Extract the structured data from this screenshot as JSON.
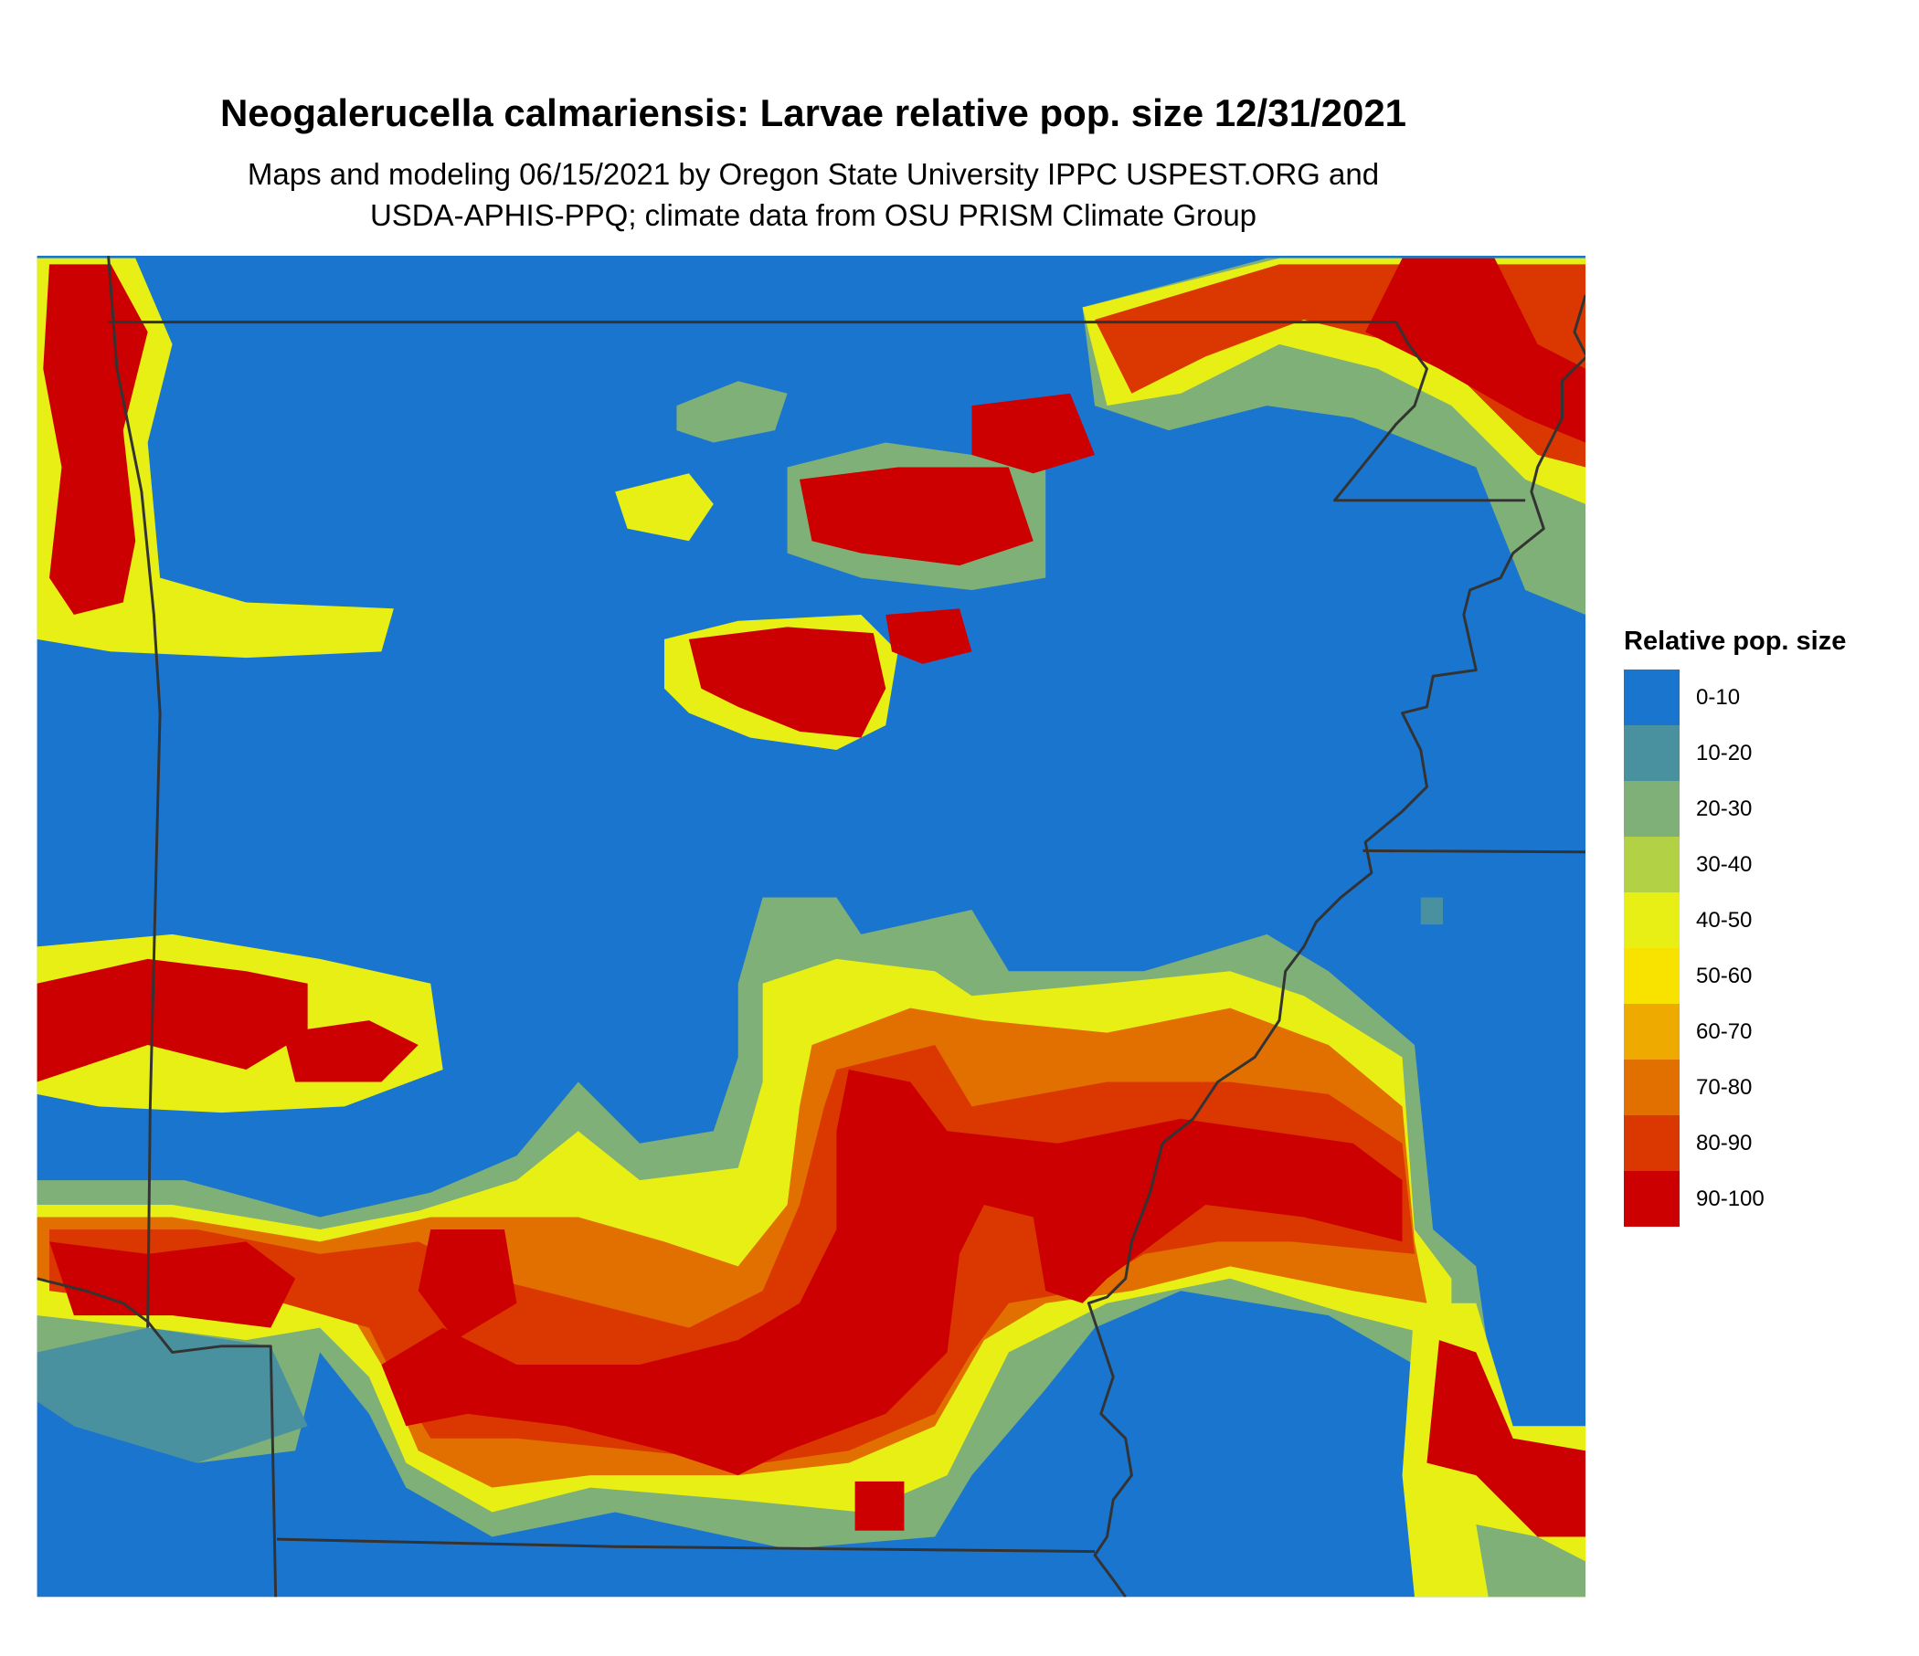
{
  "title": "Neogalerucella calmariensis: Larvae relative pop. size 12/31/2021",
  "subtitle_line1": "Maps and modeling 06/15/2021 by Oregon State University IPPC USPEST.ORG and",
  "subtitle_line2": "USDA-APHIS-PPQ; climate data from OSU PRISM Climate Group",
  "legend": {
    "title": "Relative pop. size",
    "items": [
      {
        "label": "0-10",
        "color": "#1a75cf"
      },
      {
        "label": "10-20",
        "color": "#4a91a0"
      },
      {
        "label": "20-30",
        "color": "#7fb077"
      },
      {
        "label": "30-40",
        "color": "#b2d145"
      },
      {
        "label": "40-50",
        "color": "#e7ef14"
      },
      {
        "label": "50-60",
        "color": "#f8e300"
      },
      {
        "label": "60-70",
        "color": "#efaa00"
      },
      {
        "label": "70-80",
        "color": "#e27000"
      },
      {
        "label": "80-90",
        "color": "#db3700"
      },
      {
        "label": "90-100",
        "color": "#cc0000"
      }
    ]
  },
  "boundary_color": "#333333"
}
